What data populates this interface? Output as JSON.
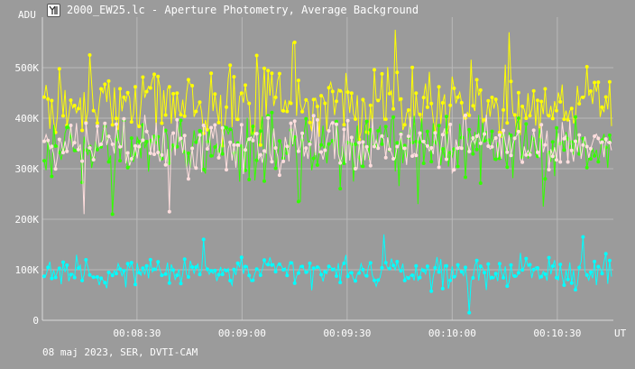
{
  "window": {
    "title": "2000_EW25.lc - Aperture Photometry, Average Background",
    "icon": "app-logo-icon"
  },
  "footer": {
    "text": "08 maj 2023, SER, DVTI-CAM"
  },
  "chart_data": {
    "type": "line",
    "title": "",
    "ylabel": "ADU",
    "xlabel": "UT",
    "ylim": [
      0,
      600000
    ],
    "xlim": [
      "00:08:03",
      "00:10:46"
    ],
    "grid": true,
    "legend": "none",
    "yticks": [
      {
        "value": 0,
        "label": "0"
      },
      {
        "value": 100000,
        "label": "100K"
      },
      {
        "value": 200000,
        "label": "200K"
      },
      {
        "value": 300000,
        "label": "300K"
      },
      {
        "value": 400000,
        "label": "400K"
      },
      {
        "value": 500000,
        "label": "500K"
      }
    ],
    "xticks": [
      {
        "value": "00:08:30",
        "label": "00:08:30"
      },
      {
        "value": "00:09:00",
        "label": "00:09:00"
      },
      {
        "value": "00:09:30",
        "label": "00:09:30"
      },
      {
        "value": "00:10:00",
        "label": "00:10:00"
      },
      {
        "value": "00:10:30",
        "label": "00:10:30"
      }
    ],
    "series": [
      {
        "color": "#ffff00",
        "mean": 430000,
        "spread": 55000,
        "spikes": [
          [
            0.08,
            525000
          ],
          [
            0.44,
            550000
          ],
          [
            0.62,
            575000
          ],
          [
            0.82,
            570000
          ]
        ]
      },
      {
        "color": "#33ff00",
        "mean": 340000,
        "spread": 45000,
        "spikes": [
          [
            0.12,
            210000
          ],
          [
            0.45,
            235000
          ],
          [
            0.66,
            230000
          ],
          [
            0.88,
            225000
          ]
        ]
      },
      {
        "color": "#ffdede",
        "mean": 350000,
        "spread": 40000,
        "spikes": [
          [
            0.07,
            210000
          ],
          [
            0.22,
            215000
          ],
          [
            0.55,
            300000
          ]
        ]
      },
      {
        "color": "#00ffff",
        "mean": 95000,
        "spread": 22000,
        "spikes": [
          [
            0.28,
            160000
          ],
          [
            0.6,
            170000
          ],
          [
            0.75,
            15000
          ],
          [
            0.95,
            165000
          ]
        ]
      }
    ]
  }
}
